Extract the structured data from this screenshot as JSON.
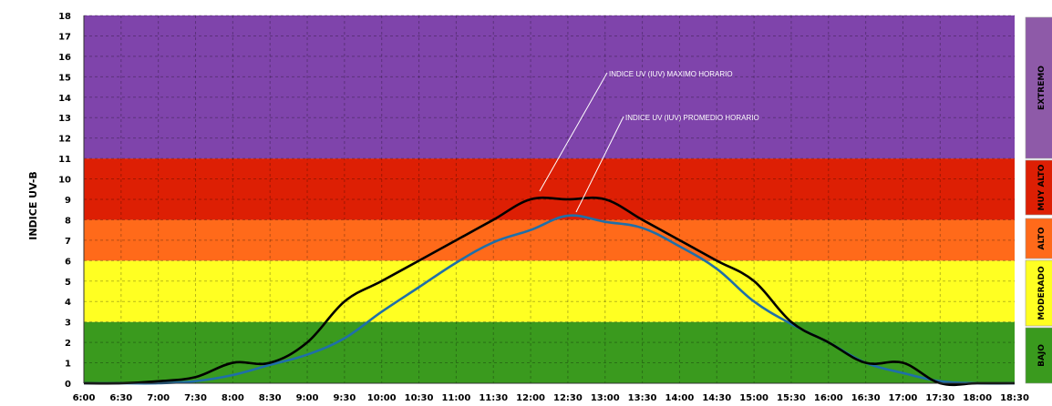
{
  "chart_data": {
    "type": "line",
    "ylabel": "INDICE UV-B",
    "ylim": [
      0,
      18
    ],
    "yticks": [
      0,
      1,
      2,
      3,
      4,
      5,
      6,
      7,
      8,
      9,
      10,
      11,
      12,
      13,
      14,
      15,
      16,
      17,
      18
    ],
    "grid": true,
    "x": [
      "6:00",
      "6:30",
      "7:00",
      "7:30",
      "8:00",
      "8:30",
      "9:00",
      "9:30",
      "10:00",
      "10:30",
      "11:00",
      "11:30",
      "12:00",
      "12:30",
      "13:00",
      "13:30",
      "14:00",
      "14:30",
      "15:00",
      "15:30",
      "16:00",
      "16:30",
      "17:00",
      "17:30",
      "18:00",
      "18:30"
    ],
    "bands": [
      {
        "label": "BAJO",
        "from": 0,
        "to": 3,
        "color": "#3a9a1e"
      },
      {
        "label": "MODERADO",
        "from": 3,
        "to": 6,
        "color": "#ffff22"
      },
      {
        "label": "ALTO",
        "from": 6,
        "to": 8,
        "color": "#ff6a1a"
      },
      {
        "label": "MUY ALTO",
        "from": 8,
        "to": 11,
        "color": "#dd1f04"
      },
      {
        "label": "EXTREMO",
        "from": 11,
        "to": 18,
        "color": "#7f44ab"
      }
    ],
    "series": [
      {
        "name": "INDICE UV (IUV) MAXIMO HORARIO",
        "color": "#000000",
        "values": [
          0,
          0,
          0.1,
          0.3,
          1,
          1,
          2,
          4,
          5,
          6,
          7,
          8,
          9,
          9,
          9,
          8,
          7,
          6,
          5,
          3,
          2,
          1,
          1,
          0,
          0,
          0
        ]
      },
      {
        "name": "INDICE UV (IUV) PROMEDIO HORARIO",
        "color": "#1f6fa8",
        "values": [
          0,
          0,
          0,
          0.1,
          0.4,
          0.9,
          1.4,
          2.2,
          3.5,
          4.7,
          5.9,
          6.9,
          7.5,
          8.2,
          7.9,
          7.6,
          6.7,
          5.6,
          4.0,
          2.9,
          2.0,
          1.0,
          0.5,
          0.1,
          0,
          0
        ]
      }
    ]
  }
}
